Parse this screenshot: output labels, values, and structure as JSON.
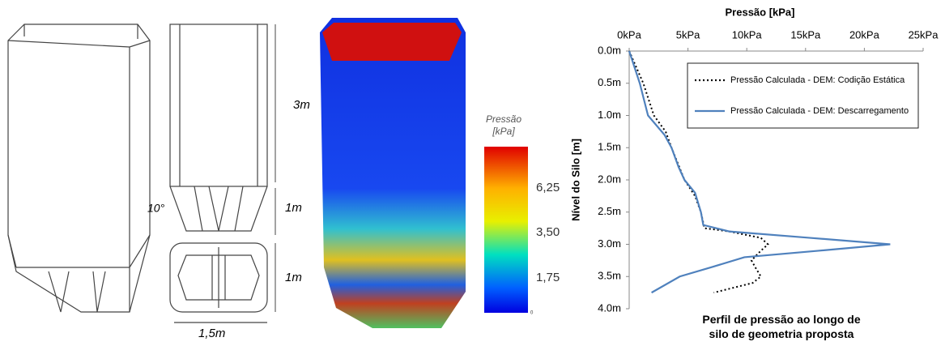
{
  "drawing": {
    "height_top": "3m",
    "height_mid": "1m",
    "height_bottom": "1m",
    "angle": "10°",
    "width": "1,5m"
  },
  "colorbar": {
    "title": [
      "Pressão",
      "[kPa]"
    ],
    "ticks": [
      "6,25",
      "3,50",
      "1,75",
      "0"
    ]
  },
  "chart_data": {
    "type": "line",
    "title": "Perfil de pressão ao longo de silo de geometria proposta",
    "x_label": "Pressão [kPa]",
    "y_label": "Nível do Silo [m]",
    "xlim": [
      0,
      25
    ],
    "xticks": [
      {
        "value": 0,
        "label": "0kPa"
      },
      {
        "value": 5,
        "label": "5kPa"
      },
      {
        "value": 10,
        "label": "10kPa"
      },
      {
        "value": 15,
        "label": "15kPa"
      },
      {
        "value": 20,
        "label": "20kPa"
      },
      {
        "value": 25,
        "label": "25kPa"
      }
    ],
    "ylim": [
      0,
      4
    ],
    "y_inverted": true,
    "yticks": [
      {
        "value": 0,
        "label": "0.0m"
      },
      {
        "value": 0.5,
        "label": "0.5m"
      },
      {
        "value": 1,
        "label": "1.0m"
      },
      {
        "value": 1.5,
        "label": "1.5m"
      },
      {
        "value": 2,
        "label": "2.0m"
      },
      {
        "value": 2.5,
        "label": "2.5m"
      },
      {
        "value": 3,
        "label": "3.0m"
      },
      {
        "value": 3.5,
        "label": "3.5m"
      },
      {
        "value": 4,
        "label": "4.0m"
      }
    ],
    "series": [
      {
        "name": "Pressão Calculada - DEM: Codição Estática",
        "color": "#000000",
        "dash": "dotted",
        "x": [
          0,
          1.2,
          2.1,
          3.1,
          3.6,
          4.7,
          5.6,
          6.1,
          6.4,
          8.5,
          11.2,
          11.8,
          11.2,
          10.4,
          10.7,
          11.2,
          10.5,
          7.2
        ],
        "y": [
          0,
          0.5,
          1.0,
          1.25,
          1.5,
          2.0,
          2.25,
          2.5,
          2.75,
          2.8,
          2.9,
          3.0,
          3.1,
          3.25,
          3.35,
          3.5,
          3.6,
          3.75
        ]
      },
      {
        "name": "Pressão Calculada - DEM: Descarregamento",
        "color": "#4f81bd",
        "dash": "solid",
        "x": [
          0,
          0.9,
          1.6,
          3.0,
          3.6,
          4.2,
          4.7,
          5.6,
          6.1,
          6.3,
          8.5,
          15.4,
          22.2,
          16.1,
          9.8,
          7.1,
          4.3,
          1.9
        ],
        "y": [
          0,
          0.5,
          1.0,
          1.3,
          1.5,
          1.8,
          2.0,
          2.2,
          2.5,
          2.7,
          2.8,
          2.9,
          3.0,
          3.1,
          3.2,
          3.35,
          3.5,
          3.75
        ]
      }
    ]
  }
}
